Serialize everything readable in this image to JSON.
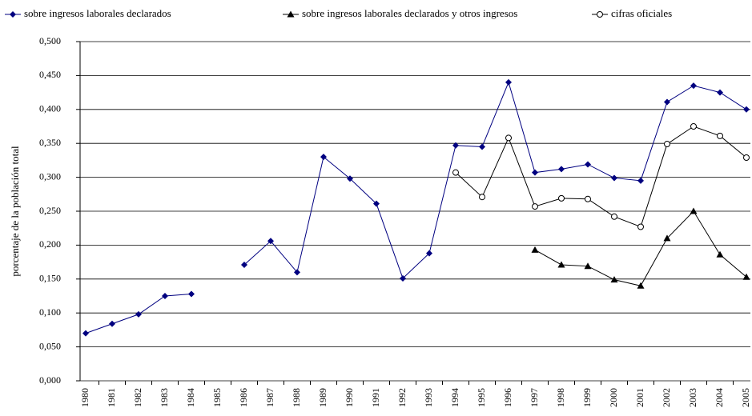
{
  "chart_data": {
    "type": "line",
    "y_label": "porcentaje de la población total",
    "categories": [
      "1980",
      "1981",
      "1982",
      "1983",
      "1984",
      "1985",
      "1986",
      "1987",
      "1988",
      "1989",
      "1990",
      "1991",
      "1992",
      "1993",
      "1994",
      "1995",
      "1996",
      "1997",
      "1998",
      "1999",
      "2000",
      "2001",
      "2002",
      "2003",
      "2004",
      "2005"
    ],
    "series": [
      {
        "name": "sobre ingresos laborales declarados",
        "color": "#000080",
        "marker": "diamond",
        "values": [
          0.07,
          0.084,
          0.098,
          0.125,
          0.128,
          null,
          0.171,
          0.206,
          0.16,
          0.33,
          0.298,
          0.261,
          0.151,
          0.188,
          0.347,
          0.345,
          0.44,
          0.307,
          0.312,
          0.319,
          0.299,
          0.295,
          0.411,
          0.435,
          0.425,
          0.4
        ]
      },
      {
        "name": "sobre ingresos laborales declarados y otros ingresos",
        "color": "#000000",
        "marker": "triangle",
        "values": [
          null,
          null,
          null,
          null,
          null,
          null,
          null,
          null,
          null,
          null,
          null,
          null,
          null,
          null,
          null,
          null,
          null,
          0.193,
          0.171,
          0.169,
          0.149,
          0.14,
          0.21,
          0.25,
          0.186,
          0.153
        ]
      },
      {
        "name": "cifras oficiales",
        "color": "#000000",
        "marker": "circle",
        "values": [
          null,
          null,
          null,
          null,
          null,
          null,
          null,
          null,
          null,
          null,
          null,
          null,
          null,
          null,
          0.307,
          0.271,
          0.358,
          0.257,
          0.269,
          0.268,
          0.242,
          0.227,
          0.349,
          0.375,
          0.361,
          0.329
        ]
      }
    ],
    "ylim": [
      0,
      0.5
    ],
    "yticks": [
      {
        "value": 0,
        "label": "0,000"
      },
      {
        "value": 0.05,
        "label": "0,050"
      },
      {
        "value": 0.1,
        "label": "0,100"
      },
      {
        "value": 0.15,
        "label": "0,150"
      },
      {
        "value": 0.2,
        "label": "0,200"
      },
      {
        "value": 0.25,
        "label": "0,250"
      },
      {
        "value": 0.3,
        "label": "0,300"
      },
      {
        "value": 0.35,
        "label": "0,350"
      },
      {
        "value": 0.4,
        "label": "0,400"
      },
      {
        "value": 0.45,
        "label": "0,450"
      },
      {
        "value": 0.5,
        "label": "0,500"
      }
    ],
    "grid": true,
    "legend": "top"
  }
}
